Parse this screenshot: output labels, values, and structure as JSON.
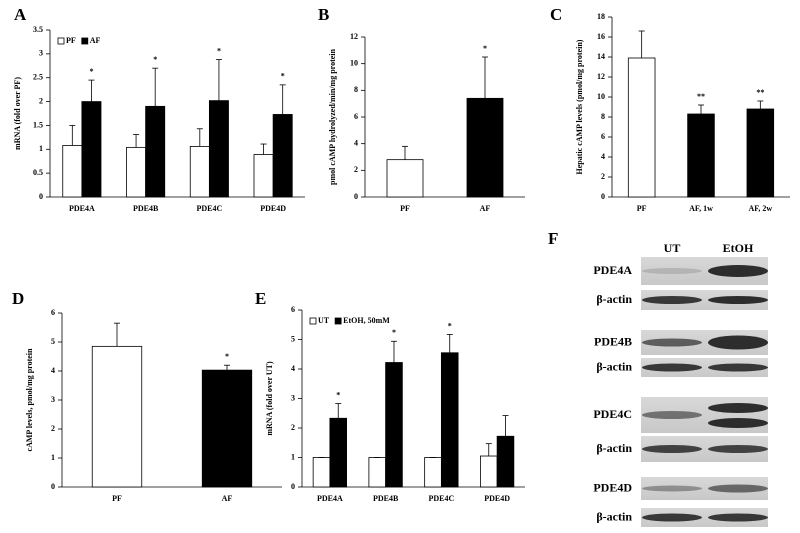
{
  "chart_data": [
    {
      "type": "bar",
      "panel": "A",
      "ylabel": "mRNA (fold over PF)",
      "categories": [
        "PDE4A",
        "PDE4B",
        "PDE4C",
        "PDE4D"
      ],
      "series": [
        {
          "name": "PF",
          "color": "#ffffff",
          "values": [
            1.08,
            1.04,
            1.06,
            0.89
          ],
          "errors": [
            0.42,
            0.27,
            0.37,
            0.22
          ]
        },
        {
          "name": "AF",
          "color": "#000000",
          "values": [
            2.0,
            1.9,
            2.02,
            1.73
          ],
          "errors": [
            0.45,
            0.8,
            0.86,
            0.62
          ],
          "annotations": [
            "*",
            "*",
            "*",
            "*"
          ]
        }
      ],
      "ylim": [
        0,
        3.5
      ],
      "yticks": [
        0,
        0.5,
        1,
        1.5,
        2,
        2.5,
        3,
        3.5
      ],
      "legend": "upper left"
    },
    {
      "type": "bar",
      "panel": "B",
      "ylabel": "pmol cAMP hydrolyzed/min/mg protein",
      "categories": [
        "PF",
        "AF"
      ],
      "values": [
        2.8,
        7.4
      ],
      "errors": [
        1.0,
        3.1
      ],
      "colors": [
        "#ffffff",
        "#000000"
      ],
      "annotations": [
        null,
        "*"
      ],
      "ylim": [
        0,
        12
      ],
      "yticks": [
        0,
        2,
        4,
        6,
        8,
        10,
        12
      ]
    },
    {
      "type": "bar",
      "panel": "C",
      "ylabel": "Hepatic cAMP levels (pmol/mg protein)",
      "categories": [
        "PF",
        "AF, 1w",
        "AF, 2w"
      ],
      "values": [
        13.9,
        8.3,
        8.8
      ],
      "errors": [
        2.7,
        0.9,
        0.8
      ],
      "colors": [
        "#ffffff",
        "#000000",
        "#000000"
      ],
      "annotations": [
        null,
        "**",
        "**"
      ],
      "ylim": [
        0,
        18
      ],
      "yticks": [
        0,
        2,
        4,
        6,
        8,
        10,
        12,
        14,
        16,
        18
      ]
    },
    {
      "type": "bar",
      "panel": "D",
      "ylabel": "cAMP levels, pmol/mg protein",
      "categories": [
        "PF",
        "AF"
      ],
      "values": [
        4.85,
        4.03
      ],
      "errors": [
        0.8,
        0.17
      ],
      "colors": [
        "#ffffff",
        "#000000"
      ],
      "annotations": [
        null,
        "*"
      ],
      "ylim": [
        0,
        6
      ],
      "yticks": [
        0,
        1,
        2,
        3,
        4,
        5,
        6
      ]
    },
    {
      "type": "bar",
      "panel": "E",
      "ylabel": "mRNA (fold over UT)",
      "categories": [
        "PDE4A",
        "PDE4B",
        "PDE4C",
        "PDE4D"
      ],
      "series": [
        {
          "name": "UT",
          "color": "#ffffff",
          "values": [
            1,
            1,
            1,
            1.05
          ],
          "errors": [
            0,
            0,
            0,
            0.42
          ]
        },
        {
          "name": "EtOH, 50mM",
          "color": "#000000",
          "values": [
            2.33,
            4.22,
            4.55,
            1.72
          ],
          "errors": [
            0.5,
            0.72,
            0.62,
            0.7
          ],
          "annotations": [
            "*",
            "*",
            "*",
            null
          ]
        }
      ],
      "ylim": [
        0,
        6
      ],
      "yticks": [
        0,
        1,
        2,
        3,
        4,
        5,
        6
      ],
      "legend": "upper left"
    }
  ],
  "panel_f": {
    "panel": "F",
    "columns": [
      "UT",
      "EtOH"
    ],
    "rows": [
      "PDE4A",
      "β-actin",
      "PDE4B",
      "β-actin",
      "PDE4C",
      "β-actin",
      "PDE4D",
      "β-actin"
    ]
  }
}
